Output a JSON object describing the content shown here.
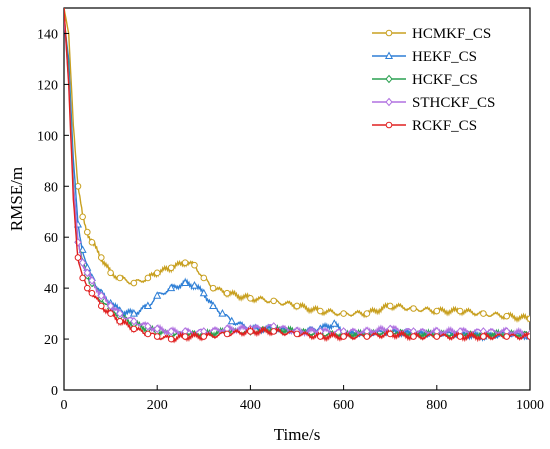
{
  "chart_data": {
    "type": "line",
    "xlabel": "Time/s",
    "ylabel": "RMSE/m",
    "xlim": [
      0,
      1000
    ],
    "ylim": [
      0,
      150
    ],
    "xticks": [
      0,
      200,
      400,
      600,
      800,
      1000
    ],
    "yticks": [
      0,
      20,
      40,
      60,
      80,
      100,
      120,
      140
    ],
    "grid": false,
    "legend_position": "top-right",
    "series": [
      {
        "name": "HCMKF_CS",
        "color": "#C8A020",
        "marker": "circle",
        "x": [
          0,
          10,
          20,
          30,
          40,
          50,
          60,
          80,
          100,
          120,
          150,
          180,
          200,
          230,
          260,
          280,
          300,
          320,
          350,
          400,
          450,
          500,
          550,
          600,
          650,
          700,
          750,
          800,
          850,
          900,
          950,
          1000
        ],
        "y": [
          150,
          140,
          105,
          80,
          68,
          62,
          58,
          52,
          46,
          44,
          42,
          44,
          46,
          48,
          50,
          49,
          44,
          40,
          38,
          36,
          35,
          33,
          31,
          30,
          30,
          33,
          32,
          31,
          31,
          30,
          29,
          28
        ]
      },
      {
        "name": "HEKF_CS",
        "color": "#2E7FD6",
        "marker": "triangle",
        "x": [
          0,
          10,
          20,
          30,
          40,
          50,
          60,
          80,
          100,
          120,
          150,
          180,
          200,
          230,
          260,
          280,
          300,
          320,
          340,
          360,
          400,
          450,
          500,
          550,
          580,
          600,
          650,
          700,
          750,
          800,
          850,
          900,
          950,
          1000
        ],
        "y": [
          145,
          130,
          90,
          65,
          55,
          48,
          44,
          38,
          34,
          31,
          30,
          33,
          37,
          40,
          42,
          41,
          38,
          33,
          30,
          27,
          24,
          24,
          23,
          24,
          26,
          22,
          22,
          23,
          22,
          22,
          22,
          21,
          22,
          21
        ]
      },
      {
        "name": "HCKF_CS",
        "color": "#2AA050",
        "marker": "diamond",
        "x": [
          0,
          10,
          20,
          30,
          40,
          50,
          60,
          80,
          100,
          120,
          150,
          180,
          200,
          230,
          260,
          300,
          350,
          400,
          450,
          500,
          550,
          600,
          650,
          700,
          750,
          800,
          850,
          900,
          950,
          1000
        ],
        "y": [
          148,
          125,
          82,
          58,
          50,
          45,
          42,
          36,
          32,
          29,
          26,
          24,
          23,
          22,
          22,
          22,
          23,
          23,
          24,
          23,
          22,
          22,
          22,
          23,
          22,
          22,
          22,
          22,
          22,
          22
        ]
      },
      {
        "name": "STHCKF_CS",
        "color": "#B070E0",
        "marker": "diamond",
        "x": [
          0,
          10,
          20,
          30,
          40,
          50,
          60,
          80,
          100,
          120,
          150,
          180,
          200,
          230,
          260,
          300,
          350,
          400,
          450,
          500,
          550,
          600,
          650,
          700,
          750,
          800,
          850,
          900,
          950,
          1000
        ],
        "y": [
          146,
          122,
          80,
          58,
          50,
          46,
          43,
          37,
          33,
          30,
          27,
          25,
          24,
          23,
          23,
          23,
          24,
          24,
          25,
          23,
          23,
          23,
          23,
          24,
          23,
          23,
          23,
          23,
          23,
          22
        ]
      },
      {
        "name": "RCKF_CS",
        "color": "#E02020",
        "marker": "circle",
        "x": [
          0,
          10,
          20,
          30,
          40,
          50,
          60,
          80,
          100,
          120,
          150,
          180,
          200,
          230,
          260,
          300,
          350,
          400,
          450,
          500,
          550,
          600,
          650,
          700,
          750,
          800,
          850,
          900,
          950,
          1000
        ],
        "y": [
          150,
          120,
          75,
          52,
          44,
          40,
          38,
          33,
          30,
          27,
          24,
          22,
          21,
          20,
          21,
          21,
          22,
          23,
          23,
          22,
          21,
          21,
          21,
          22,
          21,
          21,
          21,
          21,
          21,
          21
        ]
      }
    ]
  }
}
